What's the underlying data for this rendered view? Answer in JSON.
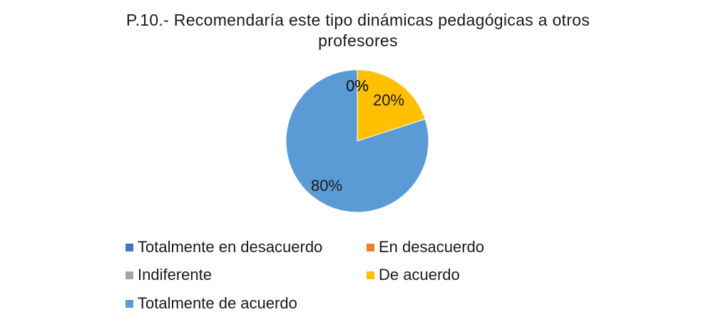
{
  "chart_data": {
    "type": "pie",
    "title": "P.10.- Recomendaría este tipo dinámicas pedagógicas a otros profesores",
    "title_lines": [
      "P.10.- Recomendaría este tipo dinámicas pedagógicas a otros",
      "profesores"
    ],
    "categories": [
      "Totalmente en desacuerdo",
      "En desacuerdo",
      "Indiferente",
      "De acuerdo",
      "Totalmente de acuerdo"
    ],
    "values": [
      0,
      0,
      0,
      20,
      80
    ],
    "data_labels": [
      "0%",
      "0%",
      "0%",
      "20%",
      "80%"
    ],
    "colors": [
      "#4472C4",
      "#ED7D31",
      "#A5A5A5",
      "#FFC000",
      "#5B9BD5"
    ],
    "legend_position": "bottom"
  }
}
